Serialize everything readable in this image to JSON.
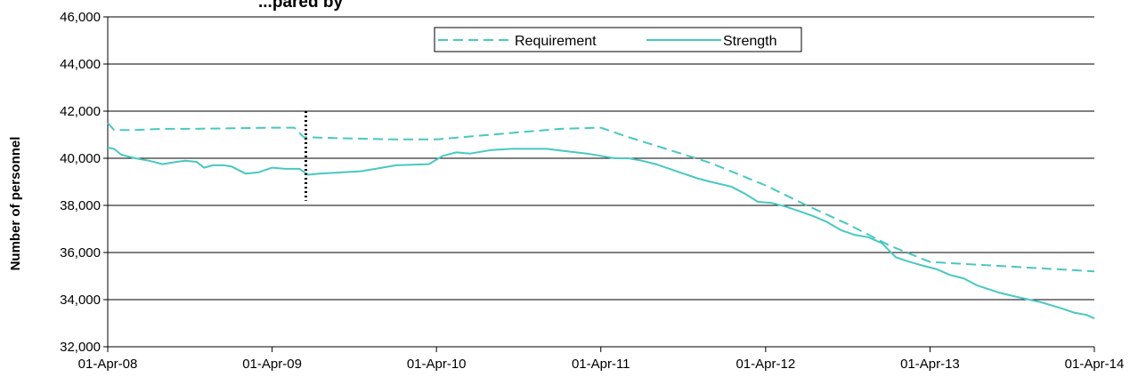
{
  "chart_data": {
    "type": "line",
    "title": "",
    "title_partial": "...pared by",
    "xlabel": "",
    "ylabel": "Number of personnel",
    "x_ticks": [
      "01-Apr-08",
      "01-Apr-09",
      "01-Apr-10",
      "01-Apr-11",
      "01-Apr-12",
      "01-Apr-13",
      "01-Apr-14"
    ],
    "xlim": [
      "2008-04-01",
      "2014-04-01"
    ],
    "ylim": [
      32000,
      46000
    ],
    "y_ticks": [
      "32,000",
      "34,000",
      "36,000",
      "38,000",
      "40,000",
      "42,000",
      "44,000",
      "46,000"
    ],
    "grid": "horizontal",
    "legend_position": "top-center",
    "colors": {
      "series": "#48C8C0",
      "grid": "#000000",
      "marker": "#000000"
    },
    "marker_line": {
      "x": "2009-06-15",
      "y_range": [
        38200,
        42000
      ]
    },
    "series": [
      {
        "name": "Requirement",
        "style": "dashed",
        "points": [
          [
            "2008-04-01",
            41500
          ],
          [
            "2008-04-15",
            41200
          ],
          [
            "2008-06-01",
            41200
          ],
          [
            "2008-08-01",
            41250
          ],
          [
            "2008-10-01",
            41250
          ],
          [
            "2009-01-01",
            41270
          ],
          [
            "2009-04-01",
            41300
          ],
          [
            "2009-05-20",
            41300
          ],
          [
            "2009-06-10",
            40900
          ],
          [
            "2009-09-01",
            40850
          ],
          [
            "2010-01-01",
            40800
          ],
          [
            "2010-04-01",
            40800
          ],
          [
            "2010-07-01",
            40950
          ],
          [
            "2010-10-01",
            41100
          ],
          [
            "2011-01-01",
            41250
          ],
          [
            "2011-04-01",
            41300
          ],
          [
            "2011-06-01",
            40900
          ],
          [
            "2011-09-01",
            40350
          ],
          [
            "2011-12-01",
            39800
          ],
          [
            "2012-04-01",
            38850
          ],
          [
            "2012-07-01",
            38000
          ],
          [
            "2012-10-01",
            37200
          ],
          [
            "2013-01-01",
            36300
          ],
          [
            "2013-04-01",
            35600
          ],
          [
            "2013-07-01",
            35500
          ],
          [
            "2013-10-01",
            35400
          ],
          [
            "2014-01-01",
            35300
          ],
          [
            "2014-04-01",
            35200
          ]
        ]
      },
      {
        "name": "Strength",
        "style": "solid",
        "points": [
          [
            "2008-04-01",
            40450
          ],
          [
            "2008-04-15",
            40400
          ],
          [
            "2008-05-01",
            40150
          ],
          [
            "2008-06-01",
            40000
          ],
          [
            "2008-07-01",
            39900
          ],
          [
            "2008-08-01",
            39750
          ],
          [
            "2008-09-01",
            39850
          ],
          [
            "2008-09-20",
            39900
          ],
          [
            "2008-10-15",
            39850
          ],
          [
            "2008-11-01",
            39600
          ],
          [
            "2008-11-20",
            39700
          ],
          [
            "2008-12-15",
            39700
          ],
          [
            "2009-01-01",
            39650
          ],
          [
            "2009-02-01",
            39350
          ],
          [
            "2009-03-01",
            39400
          ],
          [
            "2009-04-01",
            39600
          ],
          [
            "2009-05-01",
            39550
          ],
          [
            "2009-06-01",
            39550
          ],
          [
            "2009-06-20",
            39300
          ],
          [
            "2009-07-15",
            39350
          ],
          [
            "2009-09-01",
            39400
          ],
          [
            "2009-10-15",
            39450
          ],
          [
            "2009-12-01",
            39600
          ],
          [
            "2010-01-01",
            39700
          ],
          [
            "2010-03-15",
            39750
          ],
          [
            "2010-04-15",
            40100
          ],
          [
            "2010-05-15",
            40250
          ],
          [
            "2010-06-15",
            40200
          ],
          [
            "2010-08-01",
            40350
          ],
          [
            "2010-09-15",
            40400
          ],
          [
            "2010-11-01",
            40400
          ],
          [
            "2010-12-01",
            40400
          ],
          [
            "2011-01-15",
            40300
          ],
          [
            "2011-03-01",
            40200
          ],
          [
            "2011-04-01",
            40100
          ],
          [
            "2011-05-01",
            40000
          ],
          [
            "2011-06-01",
            40000
          ],
          [
            "2011-07-01",
            39900
          ],
          [
            "2011-08-01",
            39750
          ],
          [
            "2011-09-01",
            39550
          ],
          [
            "2011-10-01",
            39350
          ],
          [
            "2011-11-01",
            39150
          ],
          [
            "2011-12-01",
            39000
          ],
          [
            "2012-01-15",
            38800
          ],
          [
            "2012-02-15",
            38500
          ],
          [
            "2012-03-15",
            38150
          ],
          [
            "2012-04-15",
            38100
          ],
          [
            "2012-05-15",
            37950
          ],
          [
            "2012-06-15",
            37750
          ],
          [
            "2012-07-15",
            37550
          ],
          [
            "2012-08-15",
            37300
          ],
          [
            "2012-09-15",
            36950
          ],
          [
            "2012-10-15",
            36750
          ],
          [
            "2012-11-15",
            36650
          ],
          [
            "2012-12-15",
            36400
          ],
          [
            "2013-01-15",
            35800
          ],
          [
            "2013-02-15",
            35600
          ],
          [
            "2013-03-15",
            35450
          ],
          [
            "2013-04-15",
            35300
          ],
          [
            "2013-05-15",
            35050
          ],
          [
            "2013-06-15",
            34900
          ],
          [
            "2013-07-15",
            34600
          ],
          [
            "2013-09-01",
            34300
          ],
          [
            "2013-10-15",
            34100
          ],
          [
            "2013-12-01",
            33900
          ],
          [
            "2014-01-15",
            33650
          ],
          [
            "2014-02-15",
            33450
          ],
          [
            "2014-03-15",
            33350
          ],
          [
            "2014-04-01",
            33200
          ]
        ]
      }
    ]
  }
}
